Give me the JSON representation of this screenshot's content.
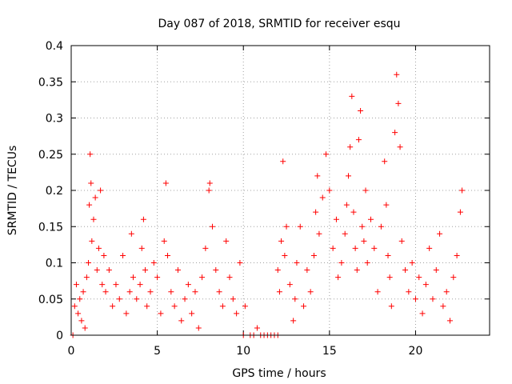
{
  "chart_data": {
    "type": "scatter",
    "title": "Day 087 of 2018, SRMTID for receiver esqu",
    "xlabel": "GPS time / hours",
    "ylabel": "SRMTID / TECUs",
    "xlim": [
      0,
      24.3
    ],
    "ylim": [
      0,
      0.4
    ],
    "grid": true,
    "marker": "+",
    "color": "#ff0000",
    "x_ticks": [
      0,
      5,
      10,
      15,
      20
    ],
    "x_tick_labels": [
      "0",
      "5",
      "10",
      "15",
      "20"
    ],
    "y_ticks": [
      0,
      0.05,
      0.1,
      0.15,
      0.2,
      0.25,
      0.3,
      0.35,
      0.4
    ],
    "y_tick_labels": [
      "0",
      "0.05",
      "0.1",
      "0.15",
      "0.2",
      "0.25",
      "0.3",
      "0.35",
      "0.4"
    ],
    "series": [
      {
        "name": "SRMTID",
        "points": [
          [
            0.1,
            0.0
          ],
          [
            0.2,
            0.04
          ],
          [
            0.3,
            0.07
          ],
          [
            0.4,
            0.03
          ],
          [
            0.5,
            0.05
          ],
          [
            0.6,
            0.02
          ],
          [
            0.7,
            0.06
          ],
          [
            0.8,
            0.01
          ],
          [
            0.9,
            0.08
          ],
          [
            1.0,
            0.1
          ],
          [
            1.05,
            0.18
          ],
          [
            1.1,
            0.25
          ],
          [
            1.15,
            0.21
          ],
          [
            1.2,
            0.13
          ],
          [
            1.3,
            0.16
          ],
          [
            1.4,
            0.19
          ],
          [
            1.5,
            0.09
          ],
          [
            1.6,
            0.12
          ],
          [
            1.7,
            0.2
          ],
          [
            1.8,
            0.07
          ],
          [
            1.9,
            0.11
          ],
          [
            2.0,
            0.06
          ],
          [
            2.2,
            0.09
          ],
          [
            2.4,
            0.04
          ],
          [
            2.6,
            0.07
          ],
          [
            2.8,
            0.05
          ],
          [
            3.0,
            0.11
          ],
          [
            3.2,
            0.03
          ],
          [
            3.4,
            0.06
          ],
          [
            3.5,
            0.14
          ],
          [
            3.6,
            0.08
          ],
          [
            3.8,
            0.05
          ],
          [
            4.0,
            0.07
          ],
          [
            4.1,
            0.12
          ],
          [
            4.2,
            0.16
          ],
          [
            4.3,
            0.09
          ],
          [
            4.4,
            0.04
          ],
          [
            4.6,
            0.06
          ],
          [
            4.8,
            0.1
          ],
          [
            5.0,
            0.08
          ],
          [
            5.2,
            0.03
          ],
          [
            5.4,
            0.13
          ],
          [
            5.5,
            0.21
          ],
          [
            5.6,
            0.11
          ],
          [
            5.8,
            0.06
          ],
          [
            6.0,
            0.04
          ],
          [
            6.2,
            0.09
          ],
          [
            6.4,
            0.02
          ],
          [
            6.6,
            0.05
          ],
          [
            6.8,
            0.07
          ],
          [
            7.0,
            0.03
          ],
          [
            7.2,
            0.06
          ],
          [
            7.4,
            0.01
          ],
          [
            7.6,
            0.08
          ],
          [
            7.8,
            0.12
          ],
          [
            8.0,
            0.2
          ],
          [
            8.05,
            0.21
          ],
          [
            8.2,
            0.15
          ],
          [
            8.4,
            0.09
          ],
          [
            8.6,
            0.06
          ],
          [
            8.8,
            0.04
          ],
          [
            9.0,
            0.13
          ],
          [
            9.2,
            0.08
          ],
          [
            9.4,
            0.05
          ],
          [
            9.6,
            0.03
          ],
          [
            9.8,
            0.1
          ],
          [
            10.0,
            0.0
          ],
          [
            10.1,
            0.04
          ],
          [
            10.4,
            0.0
          ],
          [
            10.6,
            0.0
          ],
          [
            10.8,
            0.01
          ],
          [
            11.0,
            0.0
          ],
          [
            11.2,
            0.0
          ],
          [
            11.4,
            0.0
          ],
          [
            11.6,
            0.0
          ],
          [
            11.8,
            0.0
          ],
          [
            12.0,
            0.0
          ],
          [
            12.0,
            0.09
          ],
          [
            12.1,
            0.06
          ],
          [
            12.2,
            0.13
          ],
          [
            12.3,
            0.24
          ],
          [
            12.4,
            0.11
          ],
          [
            12.5,
            0.15
          ],
          [
            12.7,
            0.07
          ],
          [
            12.9,
            0.02
          ],
          [
            13.0,
            0.05
          ],
          [
            13.1,
            0.1
          ],
          [
            13.3,
            0.15
          ],
          [
            13.5,
            0.04
          ],
          [
            13.7,
            0.09
          ],
          [
            13.9,
            0.06
          ],
          [
            14.1,
            0.11
          ],
          [
            14.2,
            0.17
          ],
          [
            14.3,
            0.22
          ],
          [
            14.4,
            0.14
          ],
          [
            14.6,
            0.19
          ],
          [
            14.8,
            0.25
          ],
          [
            15.0,
            0.2
          ],
          [
            15.2,
            0.12
          ],
          [
            15.4,
            0.16
          ],
          [
            15.5,
            0.08
          ],
          [
            15.7,
            0.1
          ],
          [
            15.9,
            0.14
          ],
          [
            16.0,
            0.18
          ],
          [
            16.1,
            0.22
          ],
          [
            16.2,
            0.26
          ],
          [
            16.3,
            0.33
          ],
          [
            16.4,
            0.17
          ],
          [
            16.5,
            0.12
          ],
          [
            16.6,
            0.09
          ],
          [
            16.7,
            0.27
          ],
          [
            16.8,
            0.31
          ],
          [
            16.9,
            0.15
          ],
          [
            17.0,
            0.13
          ],
          [
            17.1,
            0.2
          ],
          [
            17.2,
            0.1
          ],
          [
            17.4,
            0.16
          ],
          [
            17.6,
            0.12
          ],
          [
            17.8,
            0.06
          ],
          [
            18.0,
            0.15
          ],
          [
            18.2,
            0.24
          ],
          [
            18.3,
            0.18
          ],
          [
            18.4,
            0.11
          ],
          [
            18.5,
            0.08
          ],
          [
            18.6,
            0.04
          ],
          [
            18.8,
            0.28
          ],
          [
            18.9,
            0.36
          ],
          [
            19.0,
            0.32
          ],
          [
            19.1,
            0.26
          ],
          [
            19.2,
            0.13
          ],
          [
            19.4,
            0.09
          ],
          [
            19.6,
            0.06
          ],
          [
            19.8,
            0.1
          ],
          [
            20.0,
            0.05
          ],
          [
            20.2,
            0.08
          ],
          [
            20.4,
            0.03
          ],
          [
            20.6,
            0.07
          ],
          [
            20.8,
            0.12
          ],
          [
            21.0,
            0.05
          ],
          [
            21.2,
            0.09
          ],
          [
            21.4,
            0.14
          ],
          [
            21.6,
            0.04
          ],
          [
            21.8,
            0.06
          ],
          [
            22.0,
            0.02
          ],
          [
            22.2,
            0.08
          ],
          [
            22.4,
            0.11
          ],
          [
            22.6,
            0.17
          ],
          [
            22.7,
            0.2
          ]
        ]
      }
    ]
  }
}
